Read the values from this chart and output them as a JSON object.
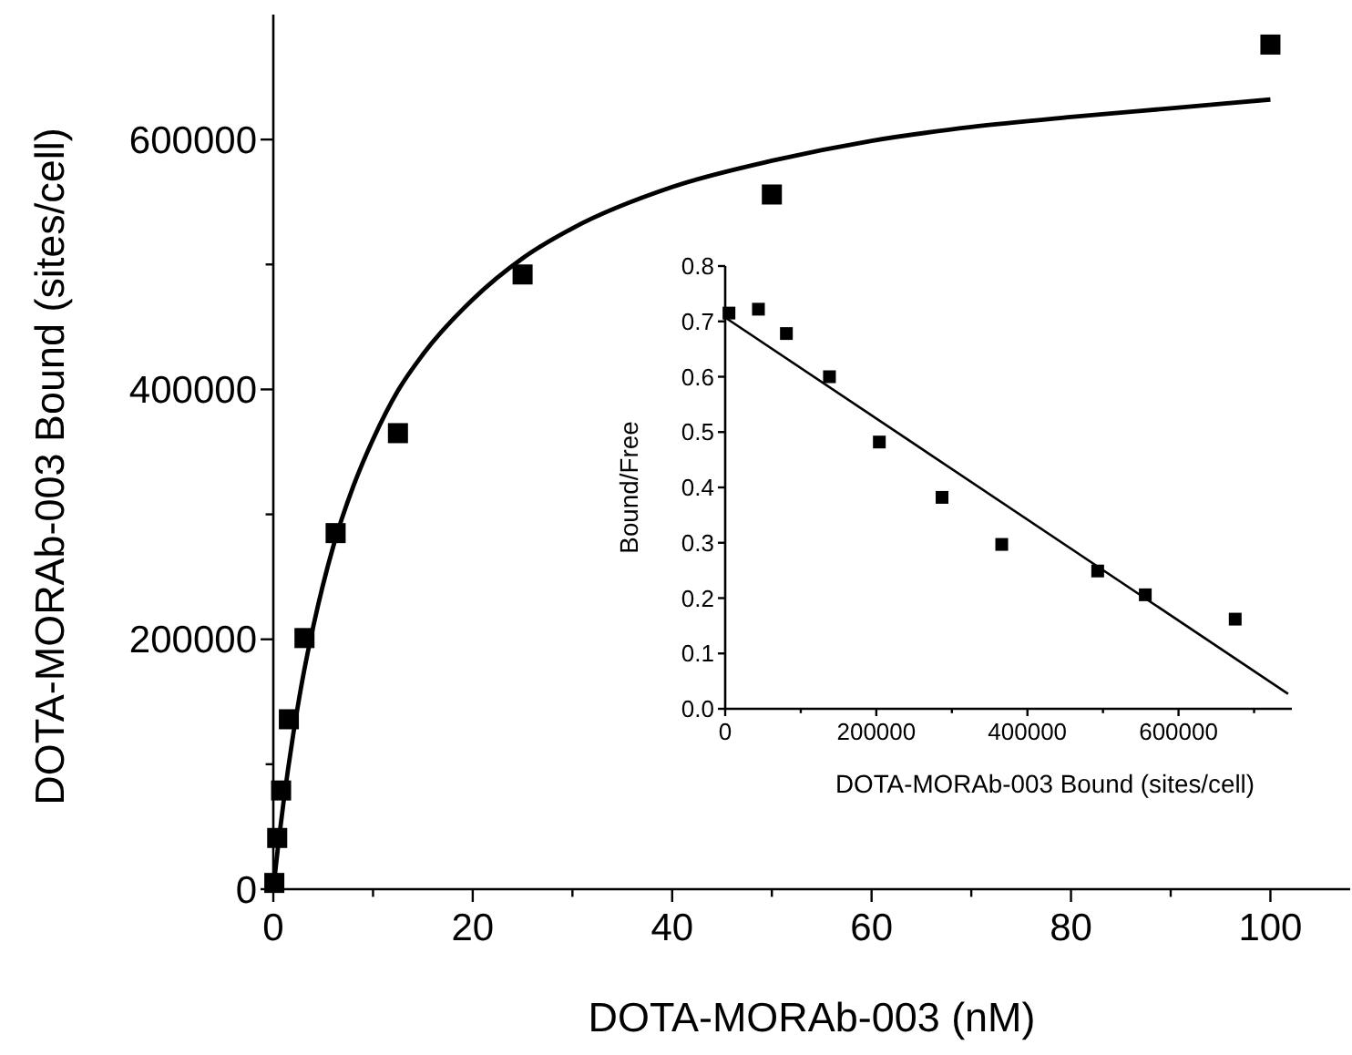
{
  "chart_data": [
    {
      "type": "scatter",
      "xlabel": "DOTA-MORAb-003 (nM)",
      "ylabel": "DOTA-MORAb-003 Bound (sites/cell)",
      "xlim": [
        0,
        108
      ],
      "ylim": [
        0,
        700000
      ],
      "xticks": [
        0,
        {
          "value": 10,
          "label": null
        },
        20,
        {
          "value": 30,
          "label": null
        },
        40,
        {
          "value": 50,
          "label": null
        },
        60,
        {
          "value": 70,
          "label": null
        },
        80,
        {
          "value": 90,
          "label": null
        },
        100
      ],
      "yticks": [
        0,
        {
          "value": 100000,
          "label": null
        },
        200000,
        {
          "value": 300000,
          "label": null
        },
        400000,
        {
          "value": 500000,
          "label": null
        },
        600000
      ],
      "grid": false,
      "series": [
        {
          "marker": "square",
          "color": "#000000",
          "x": [
            0.1,
            0.39,
            0.78,
            1.56,
            3.125,
            6.25,
            12.5,
            25,
            50,
            100
          ],
          "values": [
            5000,
            41000,
            79000,
            136000,
            201000,
            285000,
            365000,
            492000,
            556000,
            676000
          ]
        },
        {
          "type": "line",
          "line_style": "solid",
          "color": "#000000",
          "x": [
            0,
            0.5,
            1,
            2,
            3,
            4,
            6,
            8,
            10,
            12.5,
            15,
            20,
            25,
            30,
            40,
            50,
            60,
            70,
            80,
            90,
            100
          ],
          "values": [
            0,
            36000,
            68000,
            124000,
            171000,
            210000,
            274000,
            322000,
            360000,
            399000,
            428000,
            472000,
            505000,
            529000,
            562000,
            583000,
            599000,
            610000,
            618000,
            625000,
            632000
          ]
        }
      ]
    },
    {
      "type": "scatter",
      "xlabel": "DOTA-MORAb-003 Bound (sites/cell)",
      "ylabel": "Bound/Free",
      "xlim": [
        0,
        750000
      ],
      "ylim": [
        0,
        0.8
      ],
      "xticks": [
        0,
        {
          "value": 100000,
          "label": null
        },
        200000,
        {
          "value": 300000,
          "label": null
        },
        400000,
        {
          "value": 500000,
          "label": null
        },
        600000,
        {
          "value": 700000,
          "label": null
        }
      ],
      "yticks": [
        {
          "value": 0,
          "label": "0.0"
        },
        0.1,
        0.2,
        0.3,
        0.4,
        0.5,
        0.6,
        0.7,
        0.8
      ],
      "grid": false,
      "series": [
        {
          "marker": "square",
          "color": "#000000",
          "x": [
            5000,
            44000,
            81000,
            138000,
            204000,
            287000,
            366000,
            493000,
            556000,
            675000
          ],
          "values": [
            0.715,
            0.722,
            0.678,
            0.6,
            0.482,
            0.382,
            0.297,
            0.249,
            0.206,
            0.162
          ]
        },
        {
          "type": "line",
          "line_style": "solid",
          "color": "#000000",
          "x": [
            0,
            745000
          ],
          "values": [
            0.707,
            0.027
          ]
        }
      ]
    }
  ]
}
